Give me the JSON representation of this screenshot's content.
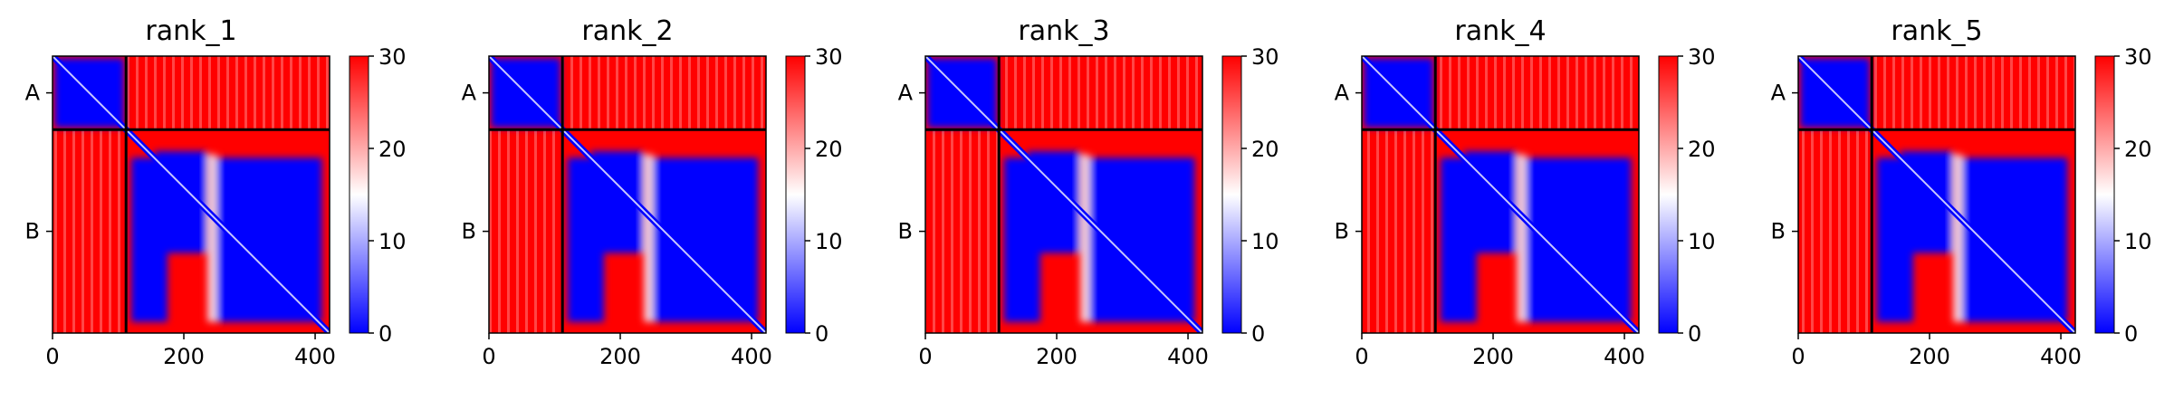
{
  "chart_data": [
    {
      "type": "heatmap",
      "title": "rank_1",
      "x_ticks": [
        0,
        200,
        400
      ],
      "y_ticks": [
        "A",
        "B"
      ],
      "xlim": [
        0,
        422
      ],
      "chains": [
        {
          "name": "A",
          "start": 0,
          "end": 112
        },
        {
          "name": "B",
          "start": 112,
          "end": 422
        }
      ],
      "colorbar": {
        "min": 0,
        "max": 30,
        "ticks": [
          0,
          10,
          20,
          30
        ],
        "colormap": "bwr"
      },
      "low_region_B": [
        [
          155,
          235,
          145,
          300
        ],
        [
          120,
          175,
          155,
          405
        ],
        [
          250,
          410,
          155,
          405
        ]
      ]
    },
    {
      "type": "heatmap",
      "title": "rank_2",
      "x_ticks": [
        0,
        200,
        400
      ],
      "y_ticks": [
        "A",
        "B"
      ],
      "xlim": [
        0,
        422
      ],
      "chains": [
        {
          "name": "A",
          "start": 0,
          "end": 112
        },
        {
          "name": "B",
          "start": 112,
          "end": 422
        }
      ],
      "colorbar": {
        "min": 0,
        "max": 30,
        "ticks": [
          0,
          10,
          20,
          30
        ],
        "colormap": "bwr"
      },
      "low_region_B": [
        [
          155,
          235,
          145,
          300
        ],
        [
          120,
          175,
          155,
          405
        ],
        [
          250,
          410,
          155,
          405
        ]
      ]
    },
    {
      "type": "heatmap",
      "title": "rank_3",
      "x_ticks": [
        0,
        200,
        400
      ],
      "y_ticks": [
        "A",
        "B"
      ],
      "xlim": [
        0,
        422
      ],
      "chains": [
        {
          "name": "A",
          "start": 0,
          "end": 112
        },
        {
          "name": "B",
          "start": 112,
          "end": 422
        }
      ],
      "colorbar": {
        "min": 0,
        "max": 30,
        "ticks": [
          0,
          10,
          20,
          30
        ],
        "colormap": "bwr"
      },
      "low_region_B": [
        [
          155,
          235,
          145,
          300
        ],
        [
          120,
          175,
          155,
          405
        ],
        [
          250,
          410,
          155,
          405
        ]
      ]
    },
    {
      "type": "heatmap",
      "title": "rank_4",
      "x_ticks": [
        0,
        200,
        400
      ],
      "y_ticks": [
        "A",
        "B"
      ],
      "xlim": [
        0,
        422
      ],
      "chains": [
        {
          "name": "A",
          "start": 0,
          "end": 112
        },
        {
          "name": "B",
          "start": 112,
          "end": 422
        }
      ],
      "colorbar": {
        "min": 0,
        "max": 30,
        "ticks": [
          0,
          10,
          20,
          30
        ],
        "colormap": "bwr"
      },
      "low_region_B": [
        [
          155,
          235,
          145,
          300
        ],
        [
          120,
          175,
          155,
          405
        ],
        [
          250,
          410,
          155,
          405
        ]
      ]
    },
    {
      "type": "heatmap",
      "title": "rank_5",
      "x_ticks": [
        0,
        200,
        400
      ],
      "y_ticks": [
        "A",
        "B"
      ],
      "xlim": [
        0,
        422
      ],
      "chains": [
        {
          "name": "A",
          "start": 0,
          "end": 112
        },
        {
          "name": "B",
          "start": 112,
          "end": 422
        }
      ],
      "colorbar": {
        "min": 0,
        "max": 30,
        "ticks": [
          0,
          10,
          20,
          30
        ],
        "colormap": "bwr"
      },
      "low_region_B": [
        [
          155,
          235,
          145,
          300
        ],
        [
          120,
          175,
          155,
          405
        ],
        [
          250,
          410,
          155,
          405
        ]
      ]
    }
  ],
  "colors": {
    "high": "#ff0000",
    "mid": "#ffffff",
    "low": "#0000ff",
    "separator": "#000000"
  }
}
